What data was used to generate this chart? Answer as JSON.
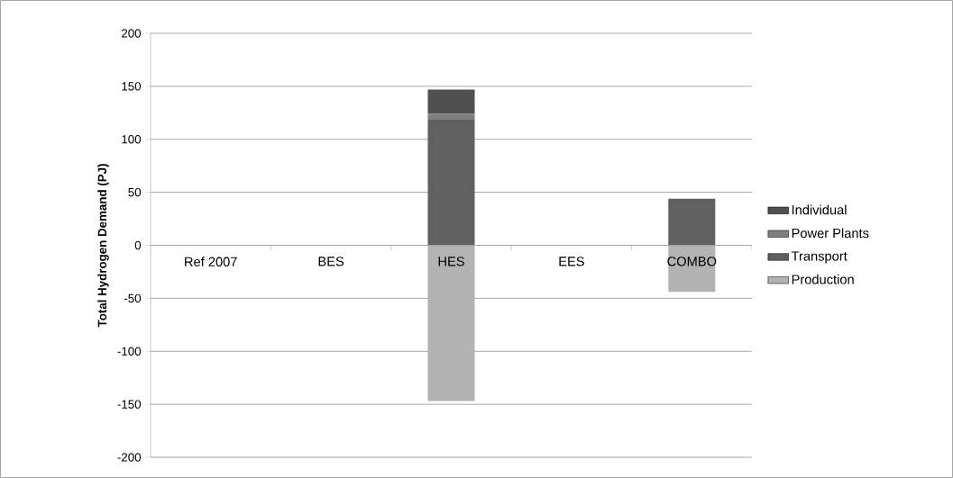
{
  "chart_data": {
    "type": "bar",
    "stacked": true,
    "ylabel": "Total Hydrogen Demand (PJ)",
    "categories": [
      "Ref 2007",
      "BES",
      "HES",
      "EES",
      "COMBO"
    ],
    "series": [
      {
        "name": "Production",
        "color": "#b3b3b3",
        "values": [
          0,
          0,
          -147,
          0,
          -44
        ]
      },
      {
        "name": "Transport",
        "color": "#606060",
        "values": [
          0,
          0,
          119,
          0,
          44
        ]
      },
      {
        "name": "Power Plants",
        "color": "#808080",
        "values": [
          0,
          0,
          5,
          0,
          0
        ]
      },
      {
        "name": "Individual",
        "color": "#505050",
        "values": [
          0,
          0,
          23,
          0,
          0
        ]
      }
    ],
    "ylim": [
      -200,
      200
    ],
    "yticks": [
      -200,
      -150,
      -100,
      -50,
      0,
      50,
      100,
      150,
      200
    ],
    "grid": "y",
    "legend": "right"
  }
}
